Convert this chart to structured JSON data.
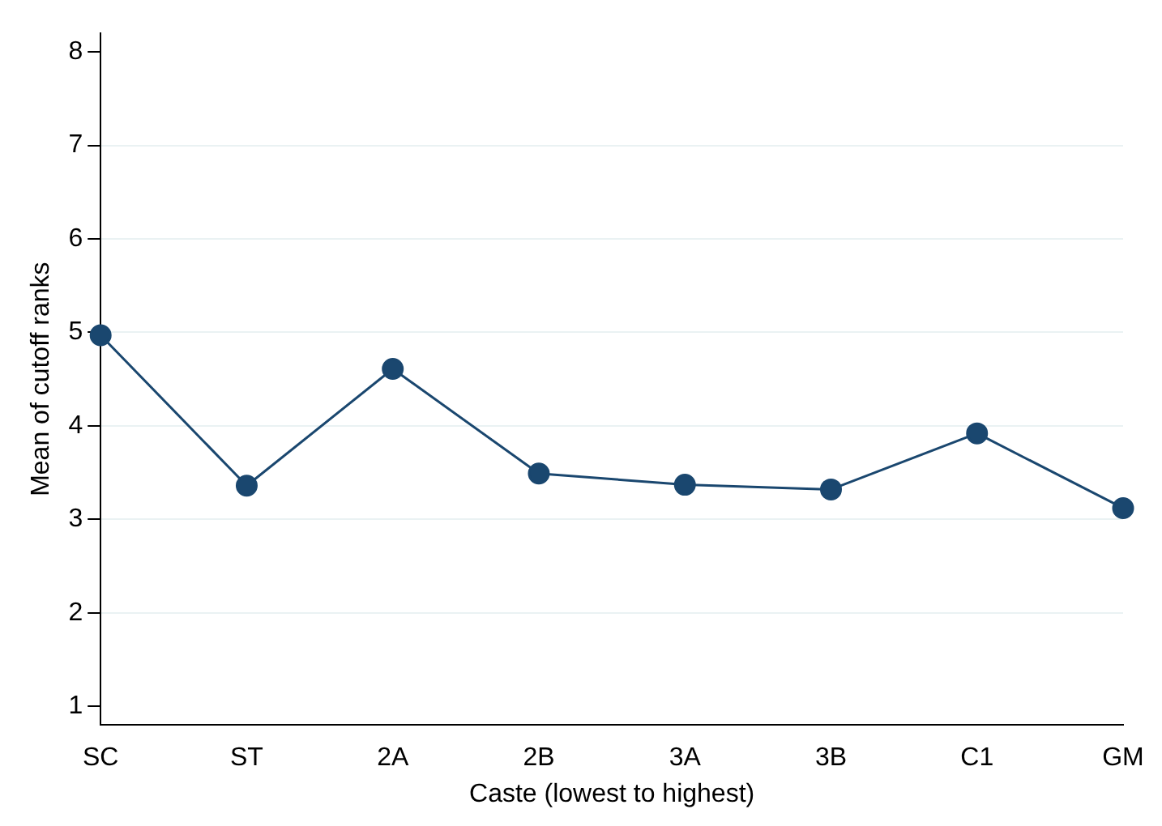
{
  "chart_data": {
    "type": "line",
    "xlabel": "Caste (lowest to highest)",
    "ylabel": "Mean of cutoff ranks",
    "categories": [
      "SC",
      "ST",
      "2A",
      "2B",
      "3A",
      "3B",
      "C1",
      "GM"
    ],
    "series": [
      {
        "color": "#1a476f",
        "values": [
          4.97,
          3.36,
          4.61,
          3.49,
          3.37,
          3.32,
          3.92,
          3.12
        ]
      }
    ],
    "ylim": [
      0.8,
      8.2
    ],
    "yticks": [
      1,
      2,
      3,
      4,
      5,
      6,
      7,
      8
    ],
    "grid": "y",
    "legend": false,
    "marker": "circle",
    "line_style": "solid"
  }
}
